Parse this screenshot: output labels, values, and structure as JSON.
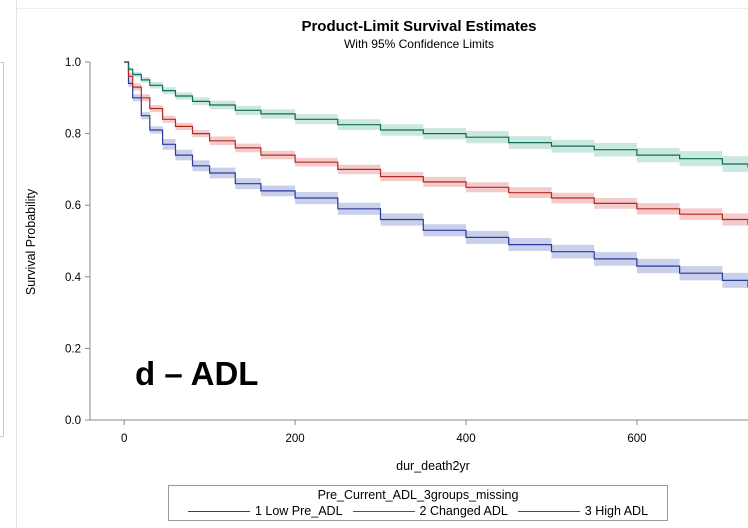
{
  "chart_data": {
    "type": "line",
    "title": "Product-Limit Survival Estimates",
    "subtitle": "With 95% Confidence Limits",
    "xlabel": "dur_death2yr",
    "ylabel": "Survival Probability",
    "xlim": [
      -40,
      730
    ],
    "ylim": [
      0,
      1.0
    ],
    "xticks": [
      0,
      200,
      400,
      600
    ],
    "yticks": [
      0.0,
      0.2,
      0.4,
      0.6,
      0.8,
      1.0
    ],
    "xtick_labels": [
      "0",
      "200",
      "400",
      "600"
    ],
    "ytick_labels": [
      "0.0",
      "0.2",
      "0.4",
      "0.6",
      "0.8",
      "1.0"
    ],
    "grid": false,
    "annotation": "d – ADL",
    "legend": {
      "title": "Pre_Current_ADL_3groups_missing",
      "placement": "bottom"
    },
    "series": [
      {
        "name": "1 Low Pre_ADL",
        "color": "#2b3a9e",
        "band_color": "#b8bfe3",
        "x": [
          0,
          5,
          10,
          20,
          30,
          45,
          60,
          80,
          100,
          130,
          160,
          200,
          250,
          300,
          350,
          400,
          450,
          500,
          550,
          600,
          650,
          700,
          730
        ],
        "y": [
          1.0,
          0.94,
          0.9,
          0.85,
          0.81,
          0.77,
          0.74,
          0.71,
          0.69,
          0.66,
          0.64,
          0.62,
          0.59,
          0.56,
          0.53,
          0.51,
          0.49,
          0.47,
          0.45,
          0.43,
          0.41,
          0.39,
          0.37
        ],
        "lower": [
          1.0,
          0.93,
          0.89,
          0.84,
          0.8,
          0.755,
          0.725,
          0.695,
          0.675,
          0.645,
          0.625,
          0.603,
          0.573,
          0.543,
          0.513,
          0.492,
          0.472,
          0.451,
          0.431,
          0.41,
          0.39,
          0.369,
          0.355
        ],
        "upper": [
          1.0,
          0.95,
          0.91,
          0.86,
          0.82,
          0.785,
          0.755,
          0.725,
          0.705,
          0.675,
          0.655,
          0.637,
          0.607,
          0.577,
          0.547,
          0.528,
          0.508,
          0.489,
          0.469,
          0.45,
          0.43,
          0.411,
          0.385
        ]
      },
      {
        "name": "2 Changed ADL",
        "color": "#b22a20",
        "band_color": "#f0b8b8",
        "x": [
          0,
          5,
          10,
          20,
          30,
          45,
          60,
          80,
          100,
          130,
          160,
          200,
          250,
          300,
          350,
          400,
          450,
          500,
          550,
          600,
          650,
          700,
          730
        ],
        "y": [
          1.0,
          0.96,
          0.93,
          0.9,
          0.87,
          0.84,
          0.82,
          0.8,
          0.78,
          0.76,
          0.74,
          0.72,
          0.7,
          0.68,
          0.665,
          0.65,
          0.635,
          0.62,
          0.605,
          0.59,
          0.575,
          0.56,
          0.545
        ],
        "lower": [
          1.0,
          0.95,
          0.92,
          0.89,
          0.86,
          0.83,
          0.81,
          0.79,
          0.768,
          0.748,
          0.728,
          0.708,
          0.687,
          0.667,
          0.651,
          0.636,
          0.62,
          0.605,
          0.59,
          0.574,
          0.559,
          0.543,
          0.527
        ],
        "upper": [
          1.0,
          0.97,
          0.94,
          0.91,
          0.88,
          0.85,
          0.83,
          0.81,
          0.792,
          0.772,
          0.752,
          0.732,
          0.713,
          0.693,
          0.679,
          0.664,
          0.65,
          0.635,
          0.62,
          0.606,
          0.591,
          0.577,
          0.563
        ]
      },
      {
        "name": "3 High ADL",
        "color": "#0f6b58",
        "band_color": "#b8e0d4",
        "x": [
          0,
          5,
          10,
          20,
          30,
          45,
          60,
          80,
          100,
          130,
          160,
          200,
          250,
          300,
          350,
          400,
          450,
          500,
          550,
          600,
          650,
          700,
          730
        ],
        "y": [
          1.0,
          0.98,
          0.965,
          0.95,
          0.935,
          0.92,
          0.905,
          0.89,
          0.88,
          0.865,
          0.855,
          0.84,
          0.825,
          0.81,
          0.8,
          0.79,
          0.775,
          0.765,
          0.755,
          0.74,
          0.73,
          0.715,
          0.705
        ],
        "lower": [
          1.0,
          0.975,
          0.958,
          0.942,
          0.926,
          0.91,
          0.895,
          0.879,
          0.868,
          0.852,
          0.842,
          0.826,
          0.81,
          0.794,
          0.784,
          0.773,
          0.757,
          0.747,
          0.736,
          0.72,
          0.709,
          0.693,
          0.685
        ],
        "upper": [
          1.0,
          0.985,
          0.972,
          0.958,
          0.944,
          0.93,
          0.915,
          0.901,
          0.892,
          0.878,
          0.868,
          0.854,
          0.84,
          0.826,
          0.816,
          0.807,
          0.793,
          0.783,
          0.774,
          0.76,
          0.751,
          0.737,
          0.725
        ]
      }
    ]
  }
}
